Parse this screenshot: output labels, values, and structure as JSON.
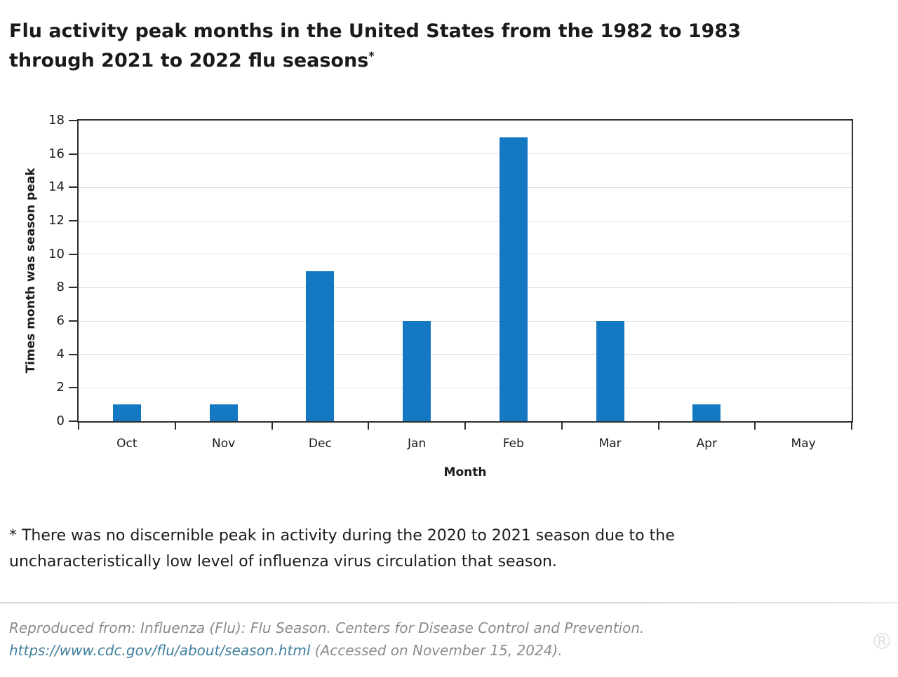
{
  "title": {
    "line1": "Flu activity peak months in the United States from the 1982 to 1983",
    "line2": "through 2021 to 2022 flu seasons",
    "superscript": "*"
  },
  "chart_data": {
    "type": "bar",
    "categories": [
      "Oct",
      "Nov",
      "Dec",
      "Jan",
      "Feb",
      "Mar",
      "Apr",
      "May"
    ],
    "values": [
      1,
      1,
      9,
      6,
      17,
      6,
      1,
      0
    ],
    "title": "",
    "xlabel": "Month",
    "ylabel": "Times month was season peak",
    "ylim": [
      0,
      18
    ],
    "ytick_step": 2,
    "grid": true,
    "legend": "none",
    "bar_color": "#1578c2",
    "axis_color": "#2e2e2e",
    "grid_color": "#e0e0e0"
  },
  "footnote": "* There was no discernible peak in activity during the 2020 to 2021 season due to the uncharacteristically low level of influenza virus circulation that season.",
  "source": {
    "prefix": "Reproduced from: Influenza (Flu): Flu Season. Centers for Disease Control and Prevention.",
    "link": "https://www.cdc.gov/flu/about/season.html",
    "suffix": " (Accessed on November 15, 2024).",
    "link_color": "#3e7f9e"
  },
  "watermark": "®"
}
